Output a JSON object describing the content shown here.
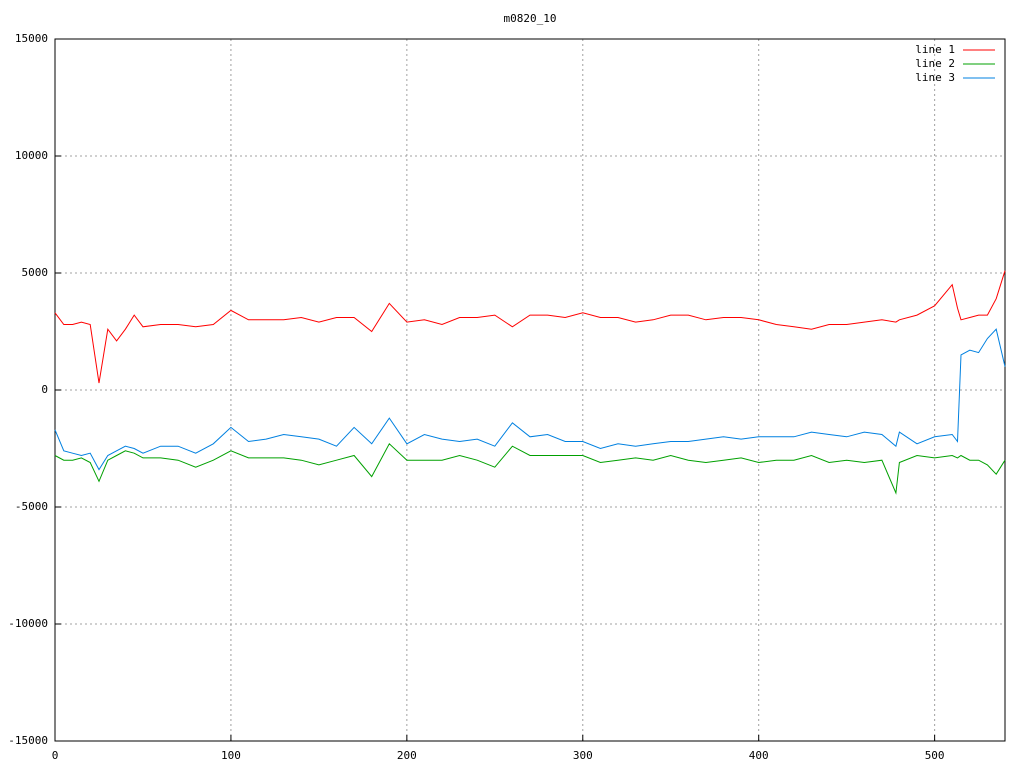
{
  "chart_data": {
    "type": "line",
    "title": "m0820_10",
    "x": [
      0,
      5,
      10,
      15,
      20,
      25,
      30,
      35,
      40,
      45,
      50,
      60,
      70,
      80,
      90,
      100,
      110,
      120,
      130,
      140,
      150,
      160,
      170,
      180,
      190,
      200,
      210,
      220,
      230,
      240,
      250,
      260,
      270,
      280,
      290,
      300,
      310,
      320,
      330,
      340,
      350,
      360,
      370,
      380,
      390,
      400,
      410,
      420,
      430,
      440,
      450,
      460,
      470,
      478,
      480,
      490,
      500,
      510,
      513,
      515,
      520,
      525,
      530,
      535,
      540
    ],
    "series": [
      {
        "name": "line 1",
        "color": "#ff0000",
        "values": [
          3300,
          2800,
          2800,
          2900,
          2800,
          300,
          2600,
          2100,
          2600,
          3200,
          2700,
          2800,
          2800,
          2700,
          2800,
          3400,
          3000,
          3000,
          3000,
          3100,
          2900,
          3100,
          3100,
          2500,
          3700,
          2900,
          3000,
          2800,
          3100,
          3100,
          3200,
          2700,
          3200,
          3200,
          3100,
          3300,
          3100,
          3100,
          2900,
          3000,
          3200,
          3200,
          3000,
          3100,
          3100,
          3000,
          2800,
          2700,
          2600,
          2800,
          2800,
          2900,
          3000,
          2900,
          3000,
          3200,
          3600,
          4500,
          3500,
          3000,
          3100,
          3200,
          3200,
          3900,
          5100
        ]
      },
      {
        "name": "line 2",
        "color": "#00a000",
        "values": [
          -2800,
          -3000,
          -3000,
          -2900,
          -3100,
          -3900,
          -3000,
          -2800,
          -2600,
          -2700,
          -2900,
          -2900,
          -3000,
          -3300,
          -3000,
          -2600,
          -2900,
          -2900,
          -2900,
          -3000,
          -3200,
          -3000,
          -2800,
          -3700,
          -2300,
          -3000,
          -3000,
          -3000,
          -2800,
          -3000,
          -3300,
          -2400,
          -2800,
          -2800,
          -2800,
          -2800,
          -3100,
          -3000,
          -2900,
          -3000,
          -2800,
          -3000,
          -3100,
          -3000,
          -2900,
          -3100,
          -3000,
          -3000,
          -2800,
          -3100,
          -3000,
          -3100,
          -3000,
          -4400,
          -3100,
          -2800,
          -2900,
          -2800,
          -2900,
          -2800,
          -3000,
          -3000,
          -3200,
          -3600,
          -3000
        ]
      },
      {
        "name": "line 3",
        "color": "#0080e0",
        "values": [
          -1700,
          -2600,
          -2700,
          -2800,
          -2700,
          -3400,
          -2800,
          -2600,
          -2400,
          -2500,
          -2700,
          -2400,
          -2400,
          -2700,
          -2300,
          -1600,
          -2200,
          -2100,
          -1900,
          -2000,
          -2100,
          -2400,
          -1600,
          -2300,
          -1200,
          -2300,
          -1900,
          -2100,
          -2200,
          -2100,
          -2400,
          -1400,
          -2000,
          -1900,
          -2200,
          -2200,
          -2500,
          -2300,
          -2400,
          -2300,
          -2200,
          -2200,
          -2100,
          -2000,
          -2100,
          -2000,
          -2000,
          -2000,
          -1800,
          -1900,
          -2000,
          -1800,
          -1900,
          -2400,
          -1800,
          -2300,
          -2000,
          -1900,
          -2200,
          1500,
          1700,
          1600,
          2200,
          2600,
          1000
        ]
      }
    ],
    "xlim": [
      0,
      540
    ],
    "xticks": [
      0,
      100,
      200,
      300,
      400,
      500
    ],
    "ylim": [
      -15000,
      15000
    ],
    "yticks": [
      -15000,
      -10000,
      -5000,
      0,
      5000,
      10000,
      15000
    ],
    "grid": true,
    "legend": "top-right"
  }
}
